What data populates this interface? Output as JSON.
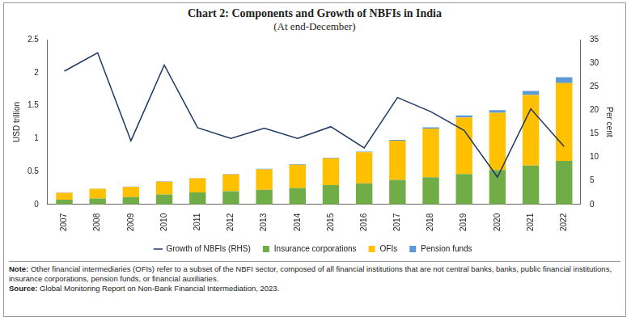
{
  "chart_data": {
    "type": "bar",
    "title": "Chart 2: Components and Growth of NBFIs in India",
    "subtitle": "(At end-December)",
    "y_label": "USD trillion",
    "y2_label": "Per cent",
    "categories": [
      "2007",
      "2008",
      "2009",
      "2010",
      "2011",
      "2012",
      "2013",
      "2014",
      "2015",
      "2016",
      "2017",
      "2018",
      "2019",
      "2020",
      "2021",
      "2022"
    ],
    "series": [
      {
        "name": "Insurance corporations",
        "type": "bar",
        "color": "#70ad47",
        "values": [
          0.07,
          0.09,
          0.11,
          0.15,
          0.18,
          0.2,
          0.22,
          0.25,
          0.29,
          0.32,
          0.37,
          0.41,
          0.46,
          0.52,
          0.59,
          0.66
        ]
      },
      {
        "name": "OFIs",
        "type": "bar",
        "color": "#ffc000",
        "values": [
          0.105,
          0.145,
          0.155,
          0.195,
          0.215,
          0.255,
          0.31,
          0.35,
          0.41,
          0.47,
          0.595,
          0.74,
          0.86,
          0.87,
          1.07,
          1.18
        ]
      },
      {
        "name": "Growth of NBFIs (RHS)",
        "type": "line",
        "axis": "y2",
        "color": "#1f3864",
        "values": [
          28.3,
          32.2,
          13.5,
          29.6,
          16.3,
          14,
          16.2,
          14,
          16.5,
          12,
          22.7,
          19.7,
          15.7,
          5.8,
          20.3,
          12.3
        ]
      },
      {
        "name": "Pension funds",
        "type": "bar",
        "color": "#5b9bd5",
        "values": [
          0.005,
          0.005,
          0.005,
          0.005,
          0.005,
          0.005,
          0.01,
          0.01,
          0.01,
          0.01,
          0.015,
          0.02,
          0.03,
          0.04,
          0.06,
          0.09
        ]
      }
    ],
    "stacked": true,
    "ylim": [
      0,
      2.5
    ],
    "yticks": [
      0,
      0.5,
      1,
      1.5,
      2,
      2.5
    ],
    "y2lim": [
      0,
      35
    ],
    "y2ticks": [
      0,
      5,
      10,
      15,
      20,
      25,
      30,
      35
    ],
    "grid": false,
    "legend": "bottom",
    "note": "Note: Other financial intermediaries (OFIs) refer to a subset of the NBFI sector, composed of all financial institutions that are not central banks, banks, public financial institutions, insurance corporations, pension funds, or financial auxiliaries.",
    "source": "Source: Global Monitoring Report on Non-Bank Financial Intermediation, 2023."
  }
}
